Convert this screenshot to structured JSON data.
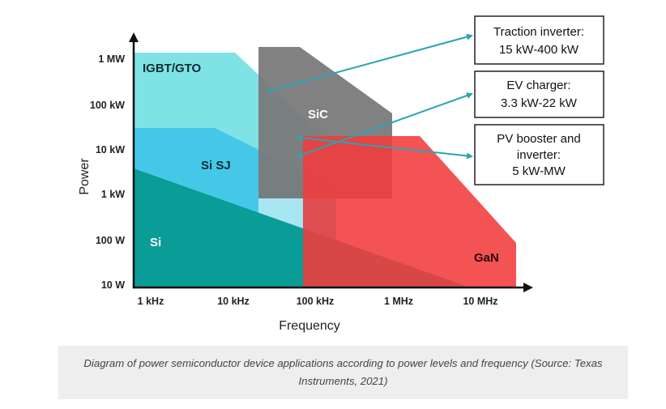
{
  "diagram": {
    "xlabel": "Frequency",
    "ylabel": "Power",
    "x_ticks": [
      "1 kHz",
      "10 kHz",
      "100 kHz",
      "1 MHz",
      "10 MHz"
    ],
    "y_ticks": [
      "10 W",
      "100 W",
      "1 kW",
      "10 kW",
      "100 kW",
      "1 MW"
    ],
    "regions": [
      {
        "id": "igbt",
        "label": "IGBT/GTO",
        "color": "#7fe3e6"
      },
      {
        "id": "sisj",
        "label": "Si SJ",
        "color": "#45c8e8"
      },
      {
        "id": "si",
        "label": "Si",
        "color": "#0a9c97"
      },
      {
        "id": "sic",
        "label": "SiC",
        "color": "#7a7a7a"
      },
      {
        "id": "gan",
        "label": "GaN",
        "color": "#f23b3b"
      }
    ],
    "callouts": [
      {
        "id": "traction",
        "lines": [
          "Traction inverter:",
          "15 kW-400 kW"
        ]
      },
      {
        "id": "ev",
        "lines": [
          "EV charger:",
          "3.3 kW-22 kW"
        ]
      },
      {
        "id": "pv",
        "lines": [
          "PV booster and",
          "inverter:",
          "5 kW-MW"
        ]
      }
    ],
    "arrow_color": "#2aa4b4"
  },
  "caption": "Diagram of power semiconductor device applications according to power levels and frequency (Source: Texas Instruments, 2021)"
}
